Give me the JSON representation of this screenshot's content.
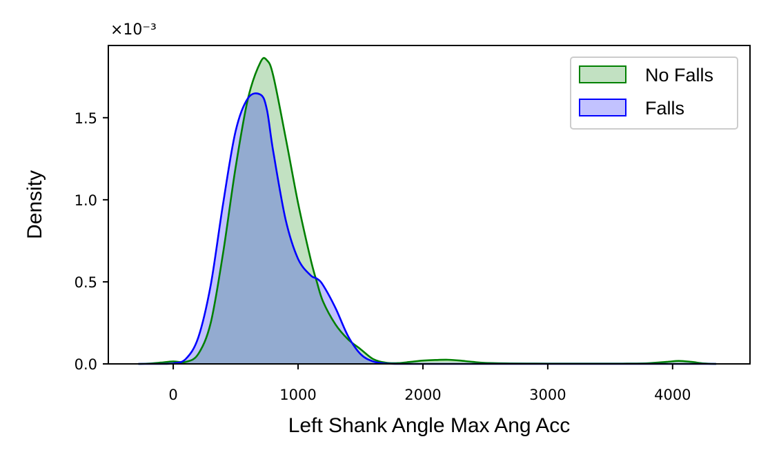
{
  "chart_data": {
    "type": "area",
    "xlabel": "Left Shank Angle Max Ang Acc",
    "ylabel": "Density",
    "y_scale_factor": "×10⁻³",
    "xlim": [
      -520,
      4620
    ],
    "ylim": [
      0,
      1.94
    ],
    "xticks": [
      0,
      1000,
      2000,
      3000,
      4000
    ],
    "xtick_labels": [
      "0",
      "1000",
      "2000",
      "3000",
      "4000"
    ],
    "yticks": [
      0.0,
      0.5,
      1.0,
      1.5
    ],
    "ytick_labels": [
      "0.0",
      "0.5",
      "1.0",
      "1.5"
    ],
    "grid": false,
    "legend_position": "top-right",
    "x": [
      -280,
      -200,
      -100,
      0,
      100,
      200,
      300,
      400,
      500,
      600,
      700,
      750,
      800,
      900,
      1000,
      1100,
      1150,
      1200,
      1300,
      1400,
      1500,
      1600,
      1700,
      1800,
      1900,
      2000,
      2100,
      2200,
      2300,
      2400,
      2500,
      2700,
      3000,
      3300,
      3600,
      3800,
      3950,
      4050,
      4150,
      4250,
      4350
    ],
    "series": [
      {
        "name": "No Falls",
        "color": "#008000",
        "fill": "rgba(0,128,0,0.24)",
        "values": [
          0.0,
          0.002,
          0.008,
          0.015,
          0.012,
          0.06,
          0.25,
          0.68,
          1.2,
          1.62,
          1.84,
          1.85,
          1.76,
          1.38,
          0.98,
          0.64,
          0.5,
          0.38,
          0.24,
          0.15,
          0.09,
          0.03,
          0.008,
          0.005,
          0.012,
          0.02,
          0.024,
          0.025,
          0.02,
          0.012,
          0.006,
          0.003,
          0.002,
          0.002,
          0.002,
          0.004,
          0.012,
          0.018,
          0.012,
          0.003,
          0.0
        ]
      },
      {
        "name": "Falls",
        "color": "#0000ff",
        "fill": "rgba(0,0,255,0.24)",
        "values": [
          0.0,
          0.0,
          0.0,
          0.003,
          0.03,
          0.16,
          0.48,
          0.98,
          1.42,
          1.62,
          1.64,
          1.55,
          1.3,
          0.88,
          0.64,
          0.54,
          0.52,
          0.48,
          0.34,
          0.17,
          0.06,
          0.015,
          0.002,
          0.0,
          0.0,
          0.0,
          0.0,
          0.0,
          0.0,
          0.0,
          0.0,
          0.0,
          0.0,
          0.0,
          0.0,
          0.0,
          0.0,
          0.0,
          0.0,
          0.0,
          0.0
        ]
      }
    ]
  }
}
